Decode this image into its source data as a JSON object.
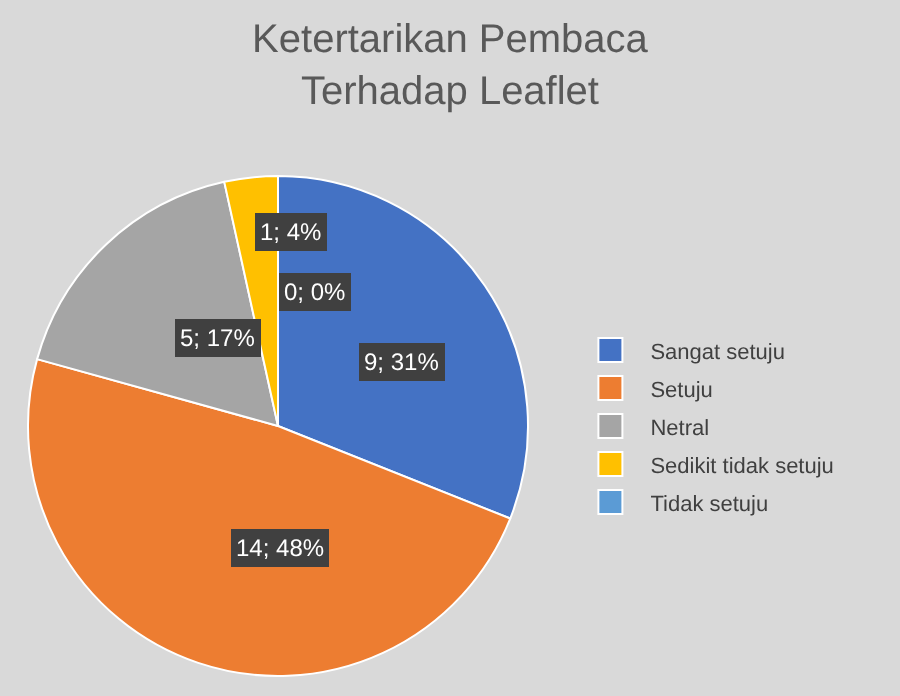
{
  "chart_data": {
    "type": "pie",
    "title": "Ketertarikan Pembaca\nTerhadap Leaflet",
    "categories": [
      "Sangat setuju",
      "Setuju",
      "Netral",
      "Sedikit tidak setuju",
      "Tidak setuju"
    ],
    "values": [
      9,
      14,
      5,
      1,
      0
    ],
    "colors": [
      "#4472c4",
      "#ed7d31",
      "#a5a5a5",
      "#ffc000",
      "#5b9bd5"
    ],
    "value_labels": [
      "9; 31%",
      "14; 48%",
      "5; 17%",
      "1; 4%",
      "0; 0%"
    ],
    "legend": "right"
  }
}
